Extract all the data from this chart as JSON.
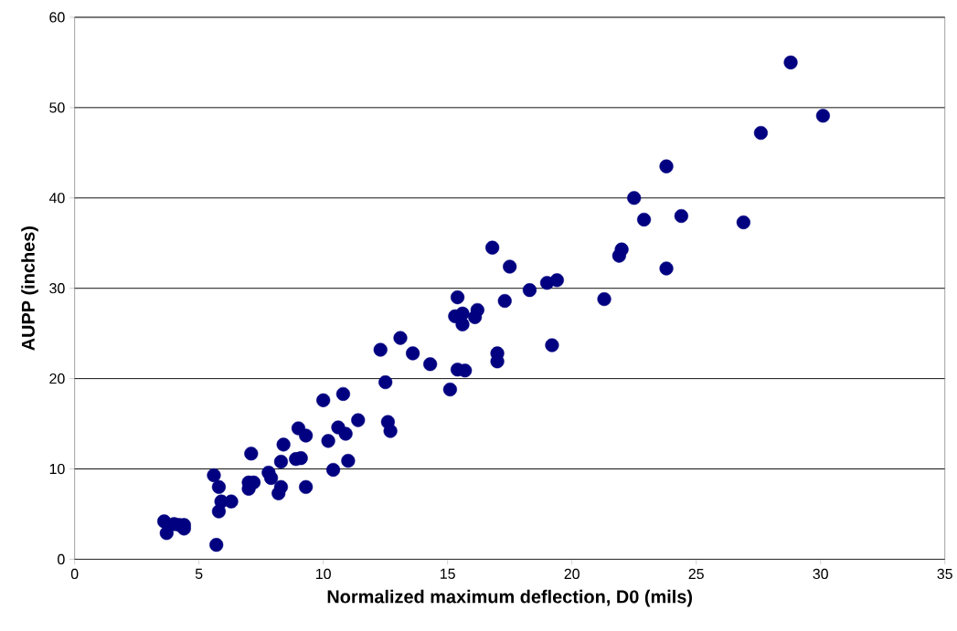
{
  "chart_data": {
    "type": "scatter",
    "xlabel": "Normalized maximum deflection, D0 (mils)",
    "ylabel": "AUPP (inches)",
    "xlim": [
      0,
      35
    ],
    "ylim": [
      0,
      60
    ],
    "xticks": [
      0,
      5,
      10,
      15,
      20,
      25,
      30,
      35
    ],
    "yticks": [
      0,
      10,
      20,
      30,
      40,
      50,
      60
    ],
    "grid": "y",
    "series": [
      {
        "color": "#000080",
        "x": [
          3.6,
          3.7,
          4.0,
          4.2,
          4.4,
          4.4,
          5.6,
          5.7,
          5.8,
          5.8,
          5.9,
          6.3,
          7.0,
          7.0,
          7.1,
          7.2,
          7.8,
          7.9,
          8.2,
          8.3,
          8.3,
          8.4,
          8.9,
          9.0,
          9.1,
          9.3,
          9.3,
          10.0,
          10.2,
          10.4,
          10.6,
          10.8,
          10.9,
          11.0,
          11.4,
          12.3,
          12.5,
          12.6,
          12.7,
          13.1,
          13.6,
          14.3,
          15.1,
          15.3,
          15.4,
          15.4,
          15.6,
          15.6,
          15.7,
          16.1,
          16.2,
          16.8,
          17.0,
          17.0,
          17.3,
          17.5,
          18.3,
          19.0,
          19.2,
          19.4,
          21.3,
          21.9,
          22.0,
          22.5,
          22.9,
          23.8,
          23.8,
          24.4,
          26.9,
          27.6,
          28.8,
          30.1
        ],
        "values": [
          4.2,
          2.9,
          3.9,
          3.8,
          3.4,
          3.8,
          9.3,
          1.6,
          8.0,
          5.3,
          6.4,
          6.4,
          7.8,
          8.5,
          11.7,
          8.5,
          9.6,
          9.0,
          7.3,
          10.8,
          8.0,
          12.7,
          11.1,
          14.5,
          11.2,
          8.0,
          13.7,
          17.6,
          13.1,
          9.9,
          14.6,
          18.3,
          13.9,
          10.9,
          15.4,
          23.2,
          19.6,
          15.2,
          14.2,
          24.5,
          22.8,
          21.6,
          18.8,
          26.9,
          29.0,
          21.0,
          27.2,
          26.0,
          20.9,
          26.8,
          27.6,
          34.5,
          22.8,
          21.9,
          28.6,
          32.4,
          29.8,
          30.6,
          23.7,
          30.9,
          28.8,
          33.6,
          34.3,
          40.0,
          37.6,
          32.2,
          43.5,
          38.0,
          37.3,
          47.2,
          55.0,
          49.1
        ]
      }
    ]
  }
}
